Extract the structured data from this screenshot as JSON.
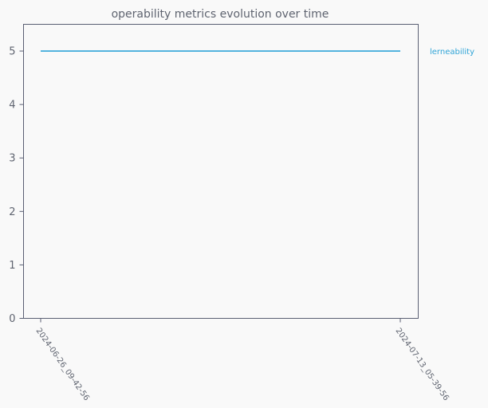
{
  "chart_data": {
    "type": "line",
    "title": "operability metrics evolution over time",
    "xlabel": "",
    "ylabel": "",
    "categories": [
      "2024-06-26_09-42-56",
      "2024-07-13_05-39-56"
    ],
    "series": [
      {
        "name": "lerneability",
        "values": [
          5,
          5
        ],
        "color": "#2fa4d7"
      }
    ],
    "ylim": [
      0,
      5.5
    ],
    "yticks": [
      0,
      1,
      2,
      3,
      4,
      5
    ],
    "grid": false,
    "legend": "inline-right",
    "colors": {
      "background": "#f9f9f9",
      "axis": "#5a5f73",
      "text": "#5f6470"
    }
  }
}
